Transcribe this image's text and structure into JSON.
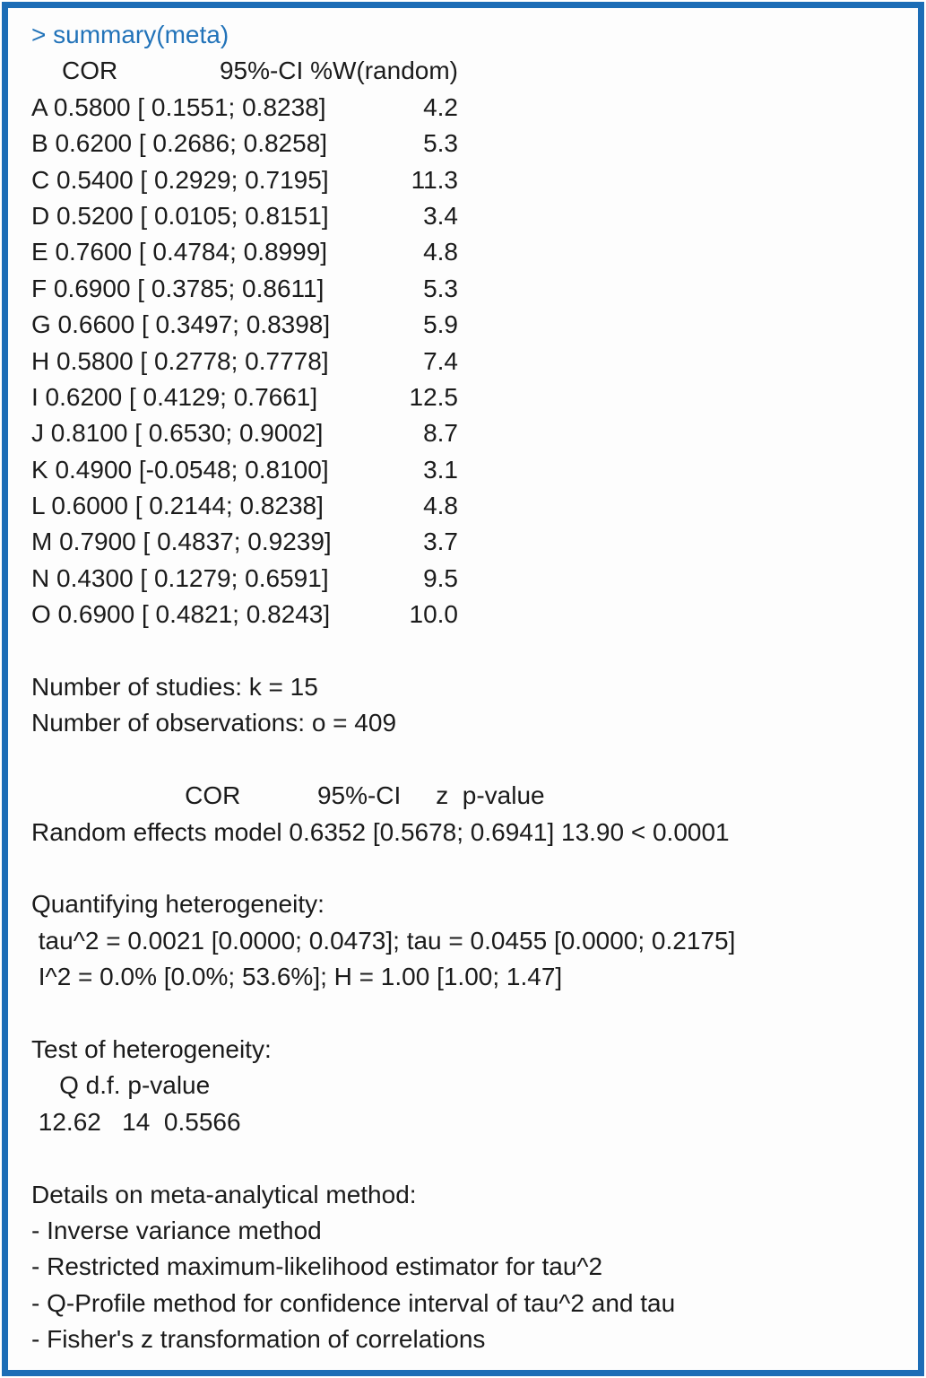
{
  "accent_blue": "#2273b9",
  "border_blue": "#1c6db6",
  "prompt_line": "> summary(meta)",
  "study_table": {
    "header": {
      "cor": "COR",
      "ci_weight": "95%-CI %W(random)"
    },
    "rows": [
      {
        "text": "A 0.5800 [ 0.1551; 0.8238]",
        "weight": "4.2"
      },
      {
        "text": "B 0.6200 [ 0.2686; 0.8258]",
        "weight": "5.3"
      },
      {
        "text": "C 0.5400 [ 0.2929; 0.7195]",
        "weight": "11.3"
      },
      {
        "text": "D 0.5200 [ 0.0105; 0.8151]",
        "weight": "3.4"
      },
      {
        "text": "E 0.7600 [ 0.4784; 0.8999]",
        "weight": "4.8"
      },
      {
        "text": "F 0.6900 [ 0.3785; 0.8611]",
        "weight": "5.3"
      },
      {
        "text": "G 0.6600 [ 0.3497; 0.8398]",
        "weight": "5.9"
      },
      {
        "text": "H 0.5800 [ 0.2778; 0.7778]",
        "weight": "7.4"
      },
      {
        "text": "I 0.6200 [ 0.4129; 0.7661]",
        "weight": "12.5"
      },
      {
        "text": "J 0.8100 [ 0.6530; 0.9002]",
        "weight": "8.7"
      },
      {
        "text": "K 0.4900 [-0.0548; 0.8100]",
        "weight": "3.1"
      },
      {
        "text": "L 0.6000 [ 0.2144; 0.8238]",
        "weight": "4.8"
      },
      {
        "text": "M 0.7900 [ 0.4837; 0.9239]",
        "weight": "3.7"
      },
      {
        "text": "N 0.4300 [ 0.1279; 0.6591]",
        "weight": "9.5"
      },
      {
        "text": "O 0.6900 [ 0.4821; 0.8243]",
        "weight": "10.0"
      }
    ]
  },
  "counts": {
    "studies": "Number of studies: k = 15",
    "observations": "Number of observations: o = 409"
  },
  "model": {
    "header": "                      COR           95%-CI     z  p-value",
    "line": "Random effects model 0.6352 [0.5678; 0.6941] 13.90 < 0.0001"
  },
  "heterogeneity": {
    "title": "Quantifying heterogeneity:",
    "tau_line": " tau^2 = 0.0021 [0.0000; 0.0473]; tau = 0.0455 [0.0000; 0.2175]",
    "i2_line": " I^2 = 0.0% [0.0%; 53.6%]; H = 1.00 [1.00; 1.47]"
  },
  "het_test": {
    "title": "Test of heterogeneity:",
    "header": "    Q d.f. p-value",
    "values": " 12.62   14  0.5566"
  },
  "method_details": {
    "title": "Details on meta-analytical method:",
    "items": [
      "- Inverse variance method",
      "- Restricted maximum-likelihood estimator for tau^2",
      "- Q-Profile method for confidence interval of tau^2 and tau",
      "- Fisher's z transformation of correlations"
    ]
  }
}
